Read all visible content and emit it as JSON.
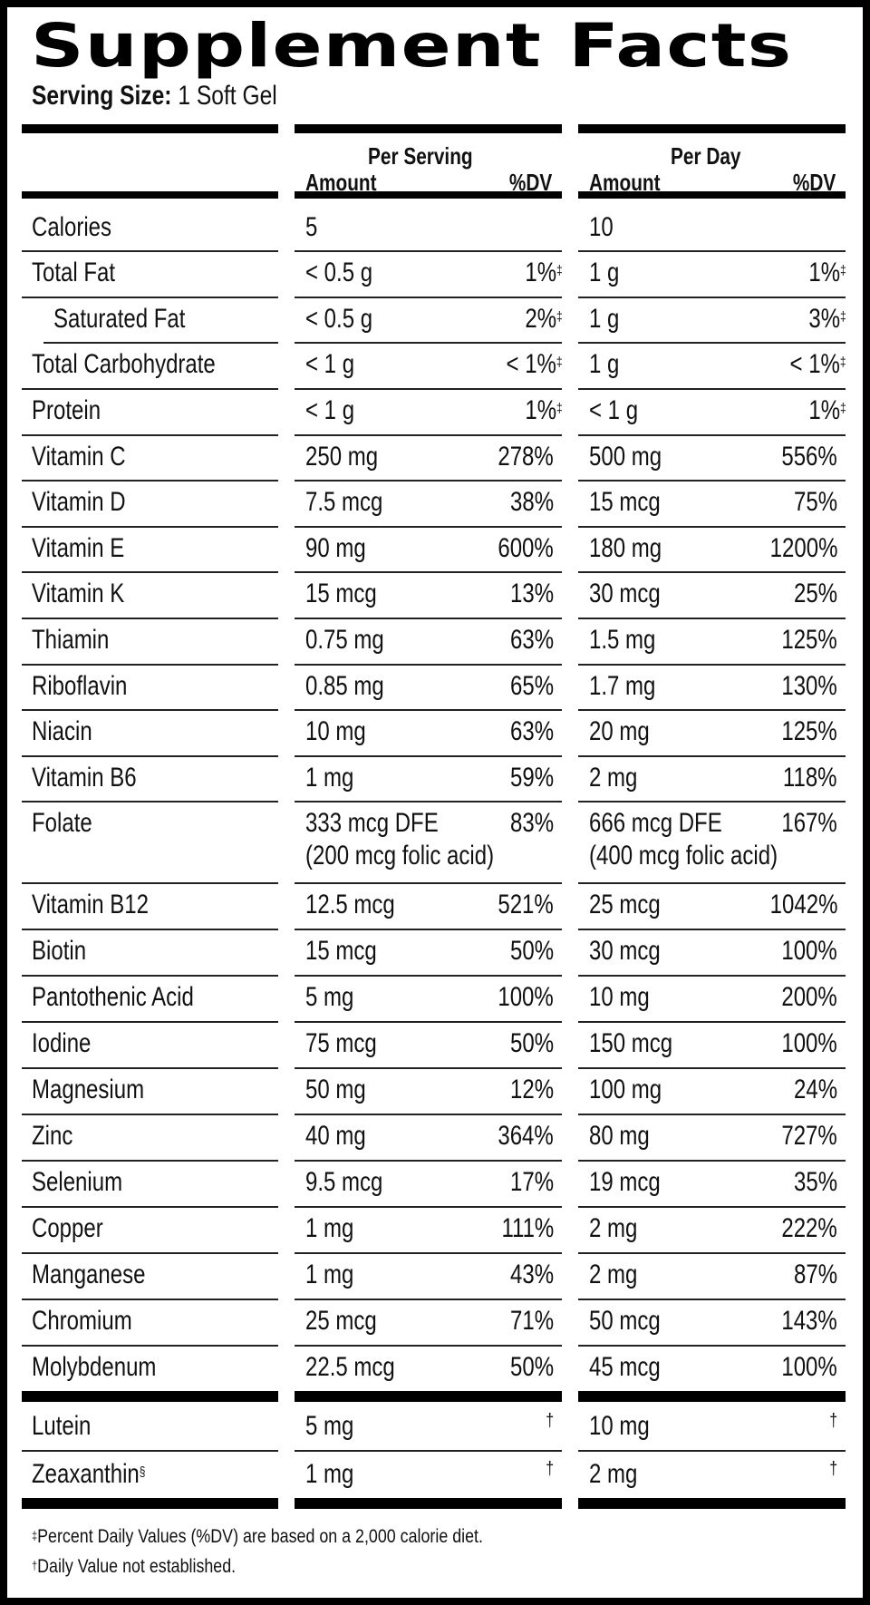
{
  "title": "Supplement Facts",
  "serving_size": {
    "label": "Serving Size:",
    "value": "1 Soft Gel"
  },
  "columns": {
    "per_serving": {
      "heading": "Per Serving",
      "amount": "Amount",
      "dv": "%DV"
    },
    "per_day": {
      "heading": "Per Day",
      "amount": "Amount",
      "dv": "%DV"
    }
  },
  "rows": [
    {
      "name": "Calories",
      "serving_amount": "5",
      "serving_dv": "",
      "day_amount": "10",
      "day_dv": "",
      "dv_mark": ""
    },
    {
      "name": "Total Fat",
      "serving_amount": "< 0.5 g",
      "serving_dv": "1%",
      "day_amount": "1 g",
      "day_dv": "1%",
      "dv_mark": "‡"
    },
    {
      "name": "Saturated Fat",
      "serving_amount": "< 0.5 g",
      "serving_dv": "2%",
      "day_amount": "1 g",
      "day_dv": "3%",
      "dv_mark": "‡",
      "indent": true
    },
    {
      "name": "Total Carbohydrate",
      "serving_amount": "< 1 g",
      "serving_dv": "< 1%",
      "day_amount": "1 g",
      "day_dv": "< 1%",
      "dv_mark": "‡"
    },
    {
      "name": "Protein",
      "serving_amount": "< 1 g",
      "serving_dv": "1%",
      "day_amount": "< 1 g",
      "day_dv": "1%",
      "dv_mark": "‡"
    },
    {
      "name": "Vitamin C",
      "serving_amount": "250 mg",
      "serving_dv": "278%",
      "day_amount": "500 mg",
      "day_dv": "556%"
    },
    {
      "name": "Vitamin D",
      "serving_amount": "7.5 mcg",
      "serving_dv": "38%",
      "day_amount": "15 mcg",
      "day_dv": "75%"
    },
    {
      "name": "Vitamin E",
      "serving_amount": "90 mg",
      "serving_dv": "600%",
      "day_amount": "180 mg",
      "day_dv": "1200%"
    },
    {
      "name": "Vitamin K",
      "serving_amount": "15 mcg",
      "serving_dv": "13%",
      "day_amount": "30 mcg",
      "day_dv": "25%"
    },
    {
      "name": "Thiamin",
      "serving_amount": "0.75 mg",
      "serving_dv": "63%",
      "day_amount": "1.5 mg",
      "day_dv": "125%"
    },
    {
      "name": "Riboflavin",
      "serving_amount": "0.85 mg",
      "serving_dv": "65%",
      "day_amount": "1.7 mg",
      "day_dv": "130%"
    },
    {
      "name": "Niacin",
      "serving_amount": "10 mg",
      "serving_dv": "63%",
      "day_amount": "20 mg",
      "day_dv": "125%"
    },
    {
      "name": "Vitamin B6",
      "serving_amount": "1 mg",
      "serving_dv": "59%",
      "day_amount": "2 mg",
      "day_dv": "118%"
    },
    {
      "name": "Folate",
      "serving_amount": "333 mcg DFE",
      "serving_sub": "(200 mcg folic acid)",
      "serving_dv": "83%",
      "day_amount": "666 mcg DFE",
      "day_sub": "(400 mcg folic acid)",
      "day_dv": "167%"
    },
    {
      "name": "Vitamin B12",
      "serving_amount": "12.5 mcg",
      "serving_dv": "521%",
      "day_amount": "25 mcg",
      "day_dv": "1042%"
    },
    {
      "name": "Biotin",
      "serving_amount": "15 mcg",
      "serving_dv": "50%",
      "day_amount": "30 mcg",
      "day_dv": "100%"
    },
    {
      "name": "Pantothenic Acid",
      "serving_amount": "5 mg",
      "serving_dv": "100%",
      "day_amount": "10 mg",
      "day_dv": "200%"
    },
    {
      "name": "Iodine",
      "serving_amount": "75 mcg",
      "serving_dv": "50%",
      "day_amount": "150 mcg",
      "day_dv": "100%"
    },
    {
      "name": "Magnesium",
      "serving_amount": "50 mg",
      "serving_dv": "12%",
      "day_amount": "100 mg",
      "day_dv": "24%"
    },
    {
      "name": "Zinc",
      "serving_amount": "40 mg",
      "serving_dv": "364%",
      "day_amount": "80 mg",
      "day_dv": "727%"
    },
    {
      "name": "Selenium",
      "serving_amount": "9.5 mcg",
      "serving_dv": "17%",
      "day_amount": "19 mcg",
      "day_dv": "35%"
    },
    {
      "name": "Copper",
      "serving_amount": "1 mg",
      "serving_dv": "111%",
      "day_amount": "2 mg",
      "day_dv": "222%"
    },
    {
      "name": "Manganese",
      "serving_amount": "1 mg",
      "serving_dv": "43%",
      "day_amount": "2 mg",
      "day_dv": "87%"
    },
    {
      "name": "Chromium",
      "serving_amount": "25 mcg",
      "serving_dv": "71%",
      "day_amount": "50 mcg",
      "day_dv": "143%"
    },
    {
      "name": "Molybdenum",
      "serving_amount": "22.5 mcg",
      "serving_dv": "50%",
      "day_amount": "45 mcg",
      "day_dv": "100%"
    }
  ],
  "other_rows": [
    {
      "name": "Lutein",
      "name_mark": "",
      "serving_amount": "5 mg",
      "serving_dv": "†",
      "day_amount": "10 mg",
      "day_dv": "†"
    },
    {
      "name": "Zeaxanthin",
      "name_mark": "§",
      "serving_amount": "1 mg",
      "serving_dv": "†",
      "day_amount": "2 mg",
      "day_dv": "†"
    }
  ],
  "footnotes": [
    {
      "mark": "‡",
      "text": "Percent Daily Values (%DV) are based on a 2,000 calorie diet."
    },
    {
      "mark": "†",
      "text": "Daily Value not established."
    }
  ],
  "colors": {
    "ink": "#000000",
    "background": "#ffffff",
    "rule": "#222222"
  }
}
